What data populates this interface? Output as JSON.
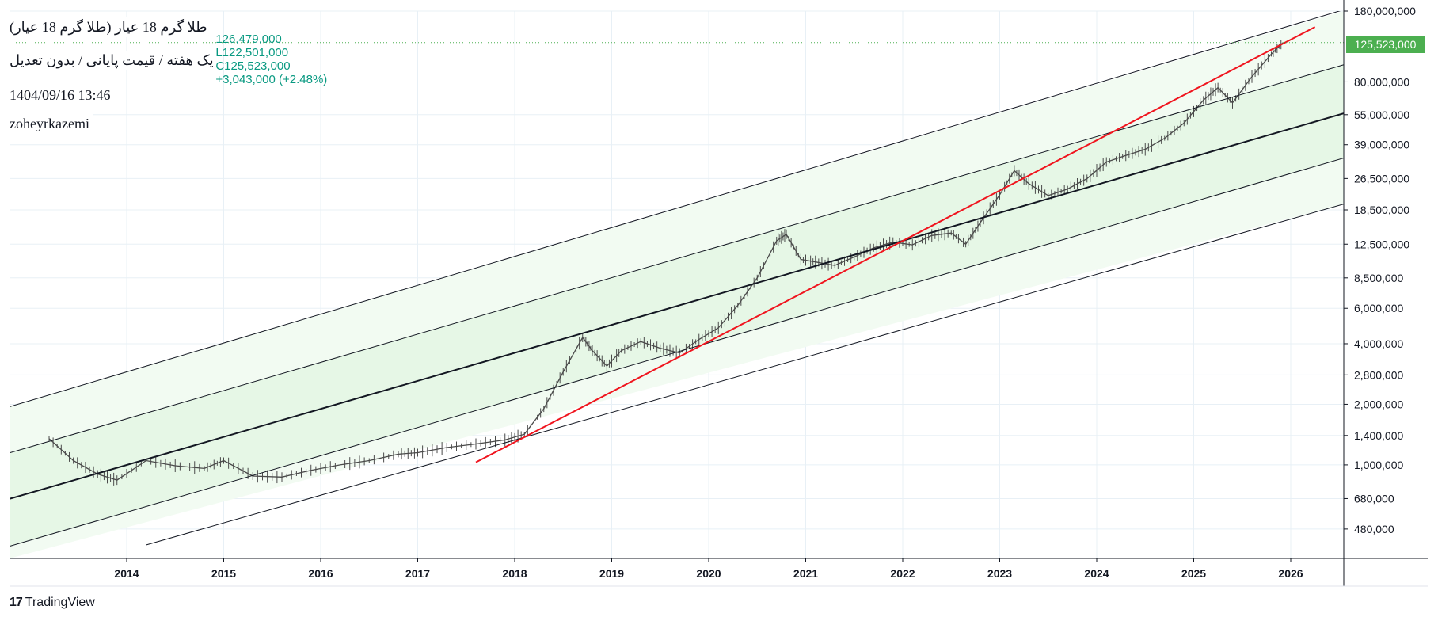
{
  "header": {
    "title": "طلا گرم 18 عیار (طلا گرم 18 عیار)",
    "subtitle": "یک هفته / قیمت پایانی / بدون تعدیل",
    "datetime": "1404/09/16 13:46",
    "author": "zoheyrkazemi"
  },
  "ohlc": {
    "high": "126,479,000",
    "low": "L122,501,000",
    "close": "C125,523,000",
    "change": "+3,043,000 (+2.48%)"
  },
  "last_price_label": "125,523,000",
  "brand": {
    "logo": "17",
    "name": "TradingView"
  },
  "colors": {
    "band_inner": "#e6f7e6",
    "band_outer": "#f2fbf2",
    "trend_red": "#f0141e",
    "channel_line": "#131722",
    "candle": "#4a4a4a",
    "grid": "#e8f0f6",
    "last_price": "#4caf50"
  },
  "chart_data": {
    "type": "line",
    "title": "طلا گرم 18 عیار (طلا گرم 18 عیار)",
    "y_scale": "log",
    "xlabel": "",
    "ylabel": "",
    "x_tick_labels": [
      "2014",
      "2015",
      "2016",
      "2017",
      "2018",
      "2019",
      "2020",
      "2021",
      "2022",
      "2023",
      "2024",
      "2025",
      "2026"
    ],
    "y_tick_labels": [
      "180,000,000",
      "80,000,000",
      "55,000,000",
      "39,000,000",
      "26,500,000",
      "18,500,000",
      "12,500,000",
      "8,500,000",
      "6,000,000",
      "4,000,000",
      "2,800,000",
      "2,000,000",
      "1,400,000",
      "1,000,000",
      "680,000",
      "480,000"
    ],
    "y_tick_values": [
      180000000,
      80000000,
      55000000,
      39000000,
      26500000,
      18500000,
      12500000,
      8500000,
      6000000,
      4000000,
      2800000,
      2000000,
      1400000,
      1000000,
      680000,
      480000
    ],
    "xlim": [
      2012.8,
      2026.5
    ],
    "ylim": [
      400000,
      180000000
    ],
    "series": [
      {
        "name": "price (weekly close)",
        "x": [
          2013.2,
          2013.45,
          2013.7,
          2013.9,
          2014.2,
          2014.5,
          2014.8,
          2015.0,
          2015.3,
          2015.6,
          2015.9,
          2016.2,
          2016.5,
          2016.8,
          2017.0,
          2017.3,
          2017.6,
          2017.9,
          2018.1,
          2018.3,
          2018.5,
          2018.7,
          2018.8,
          2018.95,
          2019.1,
          2019.3,
          2019.5,
          2019.7,
          2019.9,
          2020.1,
          2020.3,
          2020.5,
          2020.7,
          2020.8,
          2020.95,
          2021.1,
          2021.3,
          2021.5,
          2021.7,
          2021.9,
          2022.1,
          2022.3,
          2022.5,
          2022.65,
          2022.8,
          2023.0,
          2023.15,
          2023.3,
          2023.5,
          2023.7,
          2023.9,
          2024.1,
          2024.3,
          2024.5,
          2024.7,
          2024.9,
          2025.1,
          2025.25,
          2025.4,
          2025.6,
          2025.8,
          2025.92
        ],
        "values": [
          1350000,
          1050000,
          900000,
          840000,
          1050000,
          990000,
          960000,
          1050000,
          880000,
          870000,
          940000,
          1000000,
          1050000,
          1130000,
          1150000,
          1220000,
          1270000,
          1330000,
          1420000,
          1900000,
          2900000,
          4300000,
          3700000,
          3100000,
          3700000,
          4100000,
          3800000,
          3600000,
          4200000,
          4800000,
          6200000,
          8500000,
          13000000,
          14000000,
          10500000,
          10200000,
          9800000,
          10800000,
          12000000,
          12800000,
          12400000,
          13800000,
          14200000,
          12500000,
          16000000,
          22000000,
          29000000,
          25000000,
          21800000,
          23500000,
          26500000,
          32000000,
          34500000,
          37000000,
          42000000,
          50000000,
          65000000,
          75000000,
          63000000,
          85000000,
          110000000,
          125523000
        ]
      },
      {
        "name": "regression mid",
        "x": [
          2012.8,
          2026.5
        ],
        "values": [
          680000,
          55000000
        ]
      },
      {
        "name": "upper band 1",
        "x": [
          2012.8,
          2026.5
        ],
        "values": [
          1150000,
          96000000
        ]
      },
      {
        "name": "upper band 2",
        "x": [
          2012.8,
          2026.5
        ],
        "values": [
          1950000,
          180000000
        ]
      },
      {
        "name": "lower band 1",
        "x": [
          2012.8,
          2026.5
        ],
        "values": [
          395000,
          33000000
        ]
      },
      {
        "name": "lower band 2",
        "x": [
          2014.2,
          2026.5
        ],
        "values": [
          400000,
          19500000
        ]
      },
      {
        "name": "red trend line",
        "x": [
          2017.6,
          2026.25
        ],
        "values": [
          1030000,
          150000000
        ]
      }
    ],
    "last_price": 125523000
  }
}
